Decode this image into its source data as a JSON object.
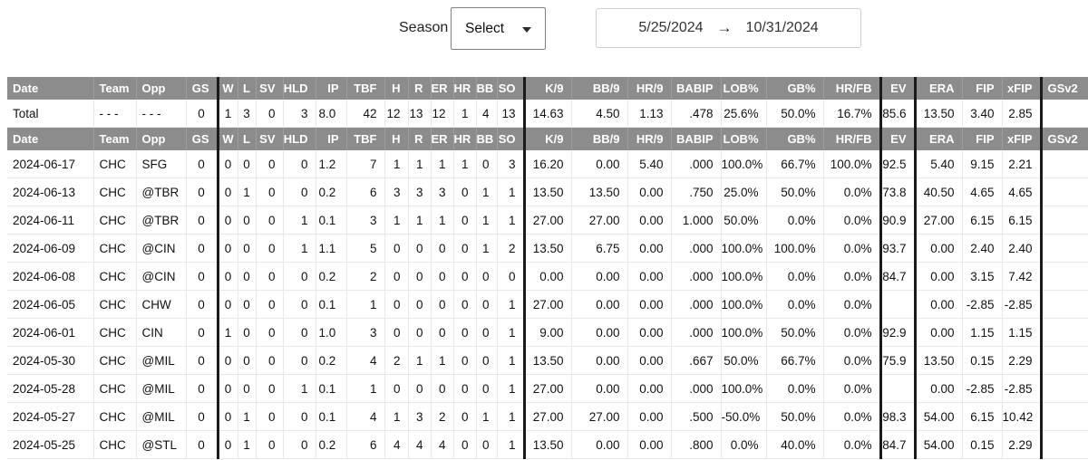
{
  "controls": {
    "season_label": "Season",
    "season_value": "Select",
    "date_from": "5/25/2024",
    "date_to": "10/31/2024",
    "arrow": "→"
  },
  "table": {
    "columns": [
      "Date",
      "Team",
      "Opp",
      "GS",
      "W",
      "L",
      "SV",
      "HLD",
      "IP",
      "TBF",
      "H",
      "R",
      "ER",
      "HR",
      "BB",
      "SO",
      "K/9",
      "BB/9",
      "HR/9",
      "BABIP",
      "LOB%",
      "GB%",
      "HR/FB",
      "EV",
      "ERA",
      "FIP",
      "xFIP",
      "GSv2"
    ],
    "total_row": [
      "Total",
      "- - -",
      "- - -",
      "0",
      "1",
      "3",
      "0",
      "3",
      "8.0",
      "42",
      "12",
      "13",
      "12",
      "1",
      "4",
      "13",
      "14.63",
      "4.50",
      "1.13",
      ".478",
      "25.6%",
      "50.0%",
      "16.7%",
      "85.6",
      "13.50",
      "3.40",
      "2.85",
      ""
    ],
    "rows": [
      [
        "2024-06-17",
        "CHC",
        "SFG",
        "0",
        "0",
        "0",
        "0",
        "0",
        "1.2",
        "7",
        "1",
        "1",
        "1",
        "1",
        "0",
        "3",
        "16.20",
        "0.00",
        "5.40",
        ".000",
        "100.0%",
        "66.7%",
        "100.0%",
        "92.5",
        "5.40",
        "9.15",
        "2.21",
        ""
      ],
      [
        "2024-06-13",
        "CHC",
        "@TBR",
        "0",
        "0",
        "1",
        "0",
        "0",
        "0.2",
        "6",
        "3",
        "3",
        "3",
        "0",
        "1",
        "1",
        "13.50",
        "13.50",
        "0.00",
        ".750",
        "25.0%",
        "50.0%",
        "0.0%",
        "73.8",
        "40.50",
        "4.65",
        "4.65",
        ""
      ],
      [
        "2024-06-11",
        "CHC",
        "@TBR",
        "0",
        "0",
        "0",
        "0",
        "1",
        "0.1",
        "3",
        "1",
        "1",
        "1",
        "0",
        "1",
        "1",
        "27.00",
        "27.00",
        "0.00",
        "1.000",
        "50.0%",
        "0.0%",
        "0.0%",
        "90.9",
        "27.00",
        "6.15",
        "6.15",
        ""
      ],
      [
        "2024-06-09",
        "CHC",
        "@CIN",
        "0",
        "0",
        "0",
        "0",
        "1",
        "1.1",
        "5",
        "0",
        "0",
        "0",
        "0",
        "1",
        "2",
        "13.50",
        "6.75",
        "0.00",
        ".000",
        "100.0%",
        "100.0%",
        "0.0%",
        "93.7",
        "0.00",
        "2.40",
        "2.40",
        ""
      ],
      [
        "2024-06-08",
        "CHC",
        "@CIN",
        "0",
        "0",
        "0",
        "0",
        "0",
        "0.2",
        "2",
        "0",
        "0",
        "0",
        "0",
        "0",
        "0",
        "0.00",
        "0.00",
        "0.00",
        ".000",
        "100.0%",
        "0.0%",
        "0.0%",
        "84.7",
        "0.00",
        "3.15",
        "7.42",
        ""
      ],
      [
        "2024-06-05",
        "CHC",
        "CHW",
        "0",
        "0",
        "0",
        "0",
        "0",
        "0.1",
        "1",
        "0",
        "0",
        "0",
        "0",
        "0",
        "1",
        "27.00",
        "0.00",
        "0.00",
        ".000",
        "100.0%",
        "0.0%",
        "0.0%",
        "",
        "0.00",
        "-2.85",
        "-2.85",
        ""
      ],
      [
        "2024-06-01",
        "CHC",
        "CIN",
        "0",
        "1",
        "0",
        "0",
        "0",
        "1.0",
        "3",
        "0",
        "0",
        "0",
        "0",
        "0",
        "1",
        "9.00",
        "0.00",
        "0.00",
        ".000",
        "100.0%",
        "50.0%",
        "0.0%",
        "92.9",
        "0.00",
        "1.15",
        "1.15",
        ""
      ],
      [
        "2024-05-30",
        "CHC",
        "@MIL",
        "0",
        "0",
        "0",
        "0",
        "0",
        "0.2",
        "4",
        "2",
        "1",
        "1",
        "0",
        "0",
        "1",
        "13.50",
        "0.00",
        "0.00",
        ".667",
        "50.0%",
        "66.7%",
        "0.0%",
        "75.9",
        "13.50",
        "0.15",
        "2.29",
        ""
      ],
      [
        "2024-05-28",
        "CHC",
        "@MIL",
        "0",
        "0",
        "0",
        "0",
        "1",
        "0.1",
        "1",
        "0",
        "0",
        "0",
        "0",
        "0",
        "1",
        "27.00",
        "0.00",
        "0.00",
        ".000",
        "100.0%",
        "0.0%",
        "0.0%",
        "",
        "0.00",
        "-2.85",
        "-2.85",
        ""
      ],
      [
        "2024-05-27",
        "CHC",
        "@MIL",
        "0",
        "0",
        "1",
        "0",
        "0",
        "0.1",
        "4",
        "1",
        "3",
        "2",
        "0",
        "1",
        "1",
        "27.00",
        "27.00",
        "0.00",
        ".500",
        "-50.0%",
        "50.0%",
        "0.0%",
        "98.3",
        "54.00",
        "6.15",
        "10.42",
        ""
      ],
      [
        "2024-05-25",
        "CHC",
        "@STL",
        "0",
        "0",
        "1",
        "0",
        "0",
        "0.2",
        "6",
        "4",
        "4",
        "4",
        "0",
        "0",
        "1",
        "13.50",
        "0.00",
        "0.00",
        ".800",
        "0.0%",
        "40.0%",
        "0.0%",
        "84.7",
        "54.00",
        "0.15",
        "2.29",
        ""
      ]
    ]
  },
  "colors": {
    "header_bg": "#8c8c8c",
    "header_text": "#ffffff",
    "thick_divider": "#1b1b1b",
    "cell_border": "#e8e8e8",
    "body_text": "#111111"
  }
}
